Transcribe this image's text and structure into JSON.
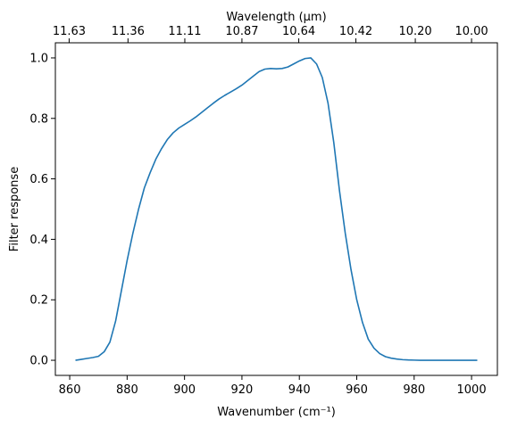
{
  "chart_data": {
    "type": "line",
    "xlabel": "Wavenumber (cm⁻¹)",
    "ylabel": "Filter response",
    "top_xlabel": "Wavelength (μm)",
    "xlim": [
      855,
      1009
    ],
    "ylim": [
      -0.05,
      1.05
    ],
    "x_ticks": [
      860,
      880,
      900,
      920,
      940,
      960,
      980,
      1000
    ],
    "x_tick_labels": [
      "860",
      "880",
      "900",
      "920",
      "940",
      "960",
      "980",
      "1000"
    ],
    "y_ticks": [
      0.0,
      0.2,
      0.4,
      0.6,
      0.8,
      1.0
    ],
    "y_tick_labels": [
      "0.0",
      "0.2",
      "0.4",
      "0.6",
      "0.8",
      "1.0"
    ],
    "top_ticks_wavenumber": [
      859.8,
      880.3,
      900.1,
      920.0,
      939.8,
      959.7,
      980.4,
      1000.0
    ],
    "top_tick_labels": [
      "11.63",
      "11.36",
      "11.11",
      "10.87",
      "10.64",
      "10.42",
      "10.20",
      "10.00"
    ],
    "grid": false,
    "line_color": "#1f77b4",
    "series": [
      {
        "x": [
          862,
          864,
          866,
          868,
          870,
          872,
          874,
          876,
          878,
          880,
          882,
          884,
          886,
          888,
          890,
          892,
          894,
          896,
          898,
          900,
          902,
          904,
          906,
          908,
          910,
          912,
          914,
          916,
          918,
          920,
          922,
          924,
          926,
          928,
          930,
          932,
          934,
          936,
          938,
          940,
          942,
          944,
          946,
          948,
          950,
          952,
          954,
          956,
          958,
          960,
          962,
          964,
          966,
          968,
          970,
          972,
          974,
          976,
          978,
          980,
          982,
          984,
          986,
          988,
          990,
          992,
          994,
          996,
          998,
          1000,
          1002
        ],
        "y": [
          0.0,
          0.003,
          0.006,
          0.009,
          0.013,
          0.028,
          0.06,
          0.13,
          0.23,
          0.33,
          0.42,
          0.5,
          0.57,
          0.62,
          0.665,
          0.7,
          0.73,
          0.752,
          0.768,
          0.78,
          0.792,
          0.805,
          0.82,
          0.835,
          0.85,
          0.864,
          0.876,
          0.887,
          0.898,
          0.91,
          0.925,
          0.94,
          0.955,
          0.963,
          0.965,
          0.964,
          0.965,
          0.97,
          0.98,
          0.99,
          0.998,
          1.0,
          0.98,
          0.935,
          0.85,
          0.72,
          0.56,
          0.42,
          0.3,
          0.2,
          0.125,
          0.07,
          0.04,
          0.022,
          0.012,
          0.007,
          0.004,
          0.002,
          0.001,
          0.0005,
          0.0,
          0.0,
          0.0,
          0.0,
          0.0,
          0.0,
          0.0,
          0.0,
          0.0,
          0.0,
          0.0
        ]
      }
    ]
  }
}
